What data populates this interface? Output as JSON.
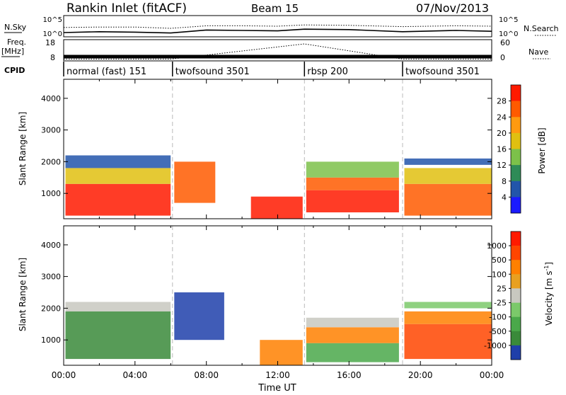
{
  "header": {
    "title": "Rankin Inlet (fitACF)",
    "beam": "Beam 15",
    "date": "07/Nov/2013"
  },
  "side_labels": {
    "nsky": "N.Sky",
    "freq_line1": "Freq.",
    "freq_line2": "[MHz]",
    "cpid": "CPID",
    "nsearch": "N.Search",
    "nave": "Nave"
  },
  "chart_data": [
    {
      "type": "line",
      "panel": "noise",
      "left_ticks": [
        "10^5",
        "10^0"
      ],
      "right_ticks": [
        "10^5",
        "10^0"
      ],
      "series": [
        {
          "name": "N.Sky",
          "x": [
            0,
            2,
            4,
            6,
            8,
            10,
            12,
            13.5,
            16,
            19,
            22,
            24
          ],
          "y": [
            1.0,
            1.2,
            1.1,
            0.9,
            1.6,
            1.5,
            1.4,
            1.8,
            1.7,
            1.2,
            1.5,
            1.3
          ]
        },
        {
          "name": "N.Search",
          "x": [
            0,
            2,
            4,
            6,
            8,
            10,
            12,
            13.5,
            16,
            19,
            22,
            24
          ],
          "y": [
            2.2,
            2.3,
            2.3,
            2.0,
            2.6,
            2.6,
            2.5,
            2.8,
            2.7,
            2.4,
            2.6,
            2.5
          ]
        }
      ]
    },
    {
      "type": "line",
      "panel": "frequency_nave",
      "left_ticks": [
        "18",
        "8"
      ],
      "right_ticks": [
        "60",
        "0"
      ],
      "ylim_left": [
        8,
        18
      ],
      "ylim_right": [
        0,
        60
      ],
      "series": [
        {
          "name": "Freq.",
          "x": [
            0,
            6,
            13.5,
            19,
            24
          ],
          "y": [
            10,
            10,
            10,
            10,
            10
          ]
        },
        {
          "name": "Nave",
          "x": [
            0,
            6,
            13.5,
            19,
            24
          ],
          "y": [
            5,
            5,
            48,
            5,
            5
          ]
        }
      ]
    },
    {
      "type": "table",
      "panel": "cpid",
      "segments": [
        {
          "label": "normal (fast) 151",
          "start": 0,
          "end": 6.1
        },
        {
          "label": "twofsound 3501",
          "start": 6.1,
          "end": 13.5
        },
        {
          "label": "rbsp 200",
          "start": 13.5,
          "end": 19.0
        },
        {
          "label": "twofsound 3501",
          "start": 19.0,
          "end": 24
        }
      ]
    },
    {
      "type": "heatmap",
      "panel": "power",
      "ylabel": "Slant Range [km]",
      "y_ticks": [
        "1000",
        "2000",
        "3000",
        "4000"
      ],
      "ylim": [
        200,
        4600
      ],
      "colorbar_label": "Power [dB]",
      "colorbar_ticks": [
        "28",
        "24",
        "20",
        "16",
        "12",
        "8",
        "4"
      ],
      "colors": [
        "#1a1aff",
        "#2255aa",
        "#2e8b57",
        "#7cc14a",
        "#e0c010",
        "#ff9a10",
        "#ff5a00",
        "#ff1a00"
      ],
      "regions": [
        {
          "x": [
            0.1,
            6.0
          ],
          "y": [
            300,
            1300
          ],
          "level": 7
        },
        {
          "x": [
            0.1,
            6.0
          ],
          "y": [
            1300,
            1800
          ],
          "level": 4
        },
        {
          "x": [
            0.1,
            6.0
          ],
          "y": [
            1800,
            2200
          ],
          "level": 1
        },
        {
          "x": [
            6.2,
            8.5
          ],
          "y": [
            700,
            2000
          ],
          "level": 6
        },
        {
          "x": [
            10.5,
            13.4
          ],
          "y": [
            200,
            900
          ],
          "level": 7
        },
        {
          "x": [
            13.6,
            18.8
          ],
          "y": [
            400,
            1100
          ],
          "level": 7
        },
        {
          "x": [
            13.6,
            18.8
          ],
          "y": [
            1100,
            1500
          ],
          "level": 6
        },
        {
          "x": [
            13.6,
            18.8
          ],
          "y": [
            1500,
            2000
          ],
          "level": 3
        },
        {
          "x": [
            19.1,
            24
          ],
          "y": [
            300,
            1300
          ],
          "level": 6
        },
        {
          "x": [
            19.1,
            24
          ],
          "y": [
            1300,
            1800
          ],
          "level": 4
        },
        {
          "x": [
            19.1,
            24
          ],
          "y": [
            1900,
            2100
          ],
          "level": 1
        }
      ]
    },
    {
      "type": "heatmap",
      "panel": "velocity",
      "ylabel": "Slant Range [km]",
      "y_ticks": [
        "1000",
        "2000",
        "3000",
        "4000"
      ],
      "ylim": [
        200,
        4600
      ],
      "xlabel": "Time UT",
      "x_ticks": [
        "00:00",
        "04:00",
        "08:00",
        "12:00",
        "16:00",
        "20:00",
        "00:00"
      ],
      "xlim": [
        0,
        24
      ],
      "colorbar_label": "Velocity [m s",
      "colorbar_label_sup": "-1",
      "colorbar_label_end": "]",
      "colorbar_ticks": [
        "1000",
        "500",
        "100",
        "25",
        "-25",
        "-100",
        "-500",
        "-1000"
      ],
      "colors": [
        "#1f3faa",
        "#3a8a3a",
        "#4aa84a",
        "#7bc96a",
        "#c8c8c0",
        "#e8a020",
        "#ff8000",
        "#ff4500",
        "#ff1a00"
      ],
      "regions": [
        {
          "x": [
            0.1,
            6.0
          ],
          "y": [
            400,
            1900
          ],
          "level": 1
        },
        {
          "x": [
            0.1,
            6.0
          ],
          "y": [
            1900,
            2200
          ],
          "level": 4
        },
        {
          "x": [
            6.2,
            9.0
          ],
          "y": [
            1000,
            2500
          ],
          "level": 0
        },
        {
          "x": [
            11.0,
            13.4
          ],
          "y": [
            200,
            1000
          ],
          "level": 6
        },
        {
          "x": [
            13.6,
            18.8
          ],
          "y": [
            300,
            900
          ],
          "level": 2
        },
        {
          "x": [
            13.6,
            18.8
          ],
          "y": [
            900,
            1400
          ],
          "level": 6
        },
        {
          "x": [
            13.6,
            18.8
          ],
          "y": [
            1400,
            1700
          ],
          "level": 4
        },
        {
          "x": [
            19.1,
            24
          ],
          "y": [
            400,
            1500
          ],
          "level": 7
        },
        {
          "x": [
            19.1,
            24
          ],
          "y": [
            1500,
            1900
          ],
          "level": 6
        },
        {
          "x": [
            19.1,
            24
          ],
          "y": [
            2000,
            2200
          ],
          "level": 3
        }
      ]
    }
  ]
}
